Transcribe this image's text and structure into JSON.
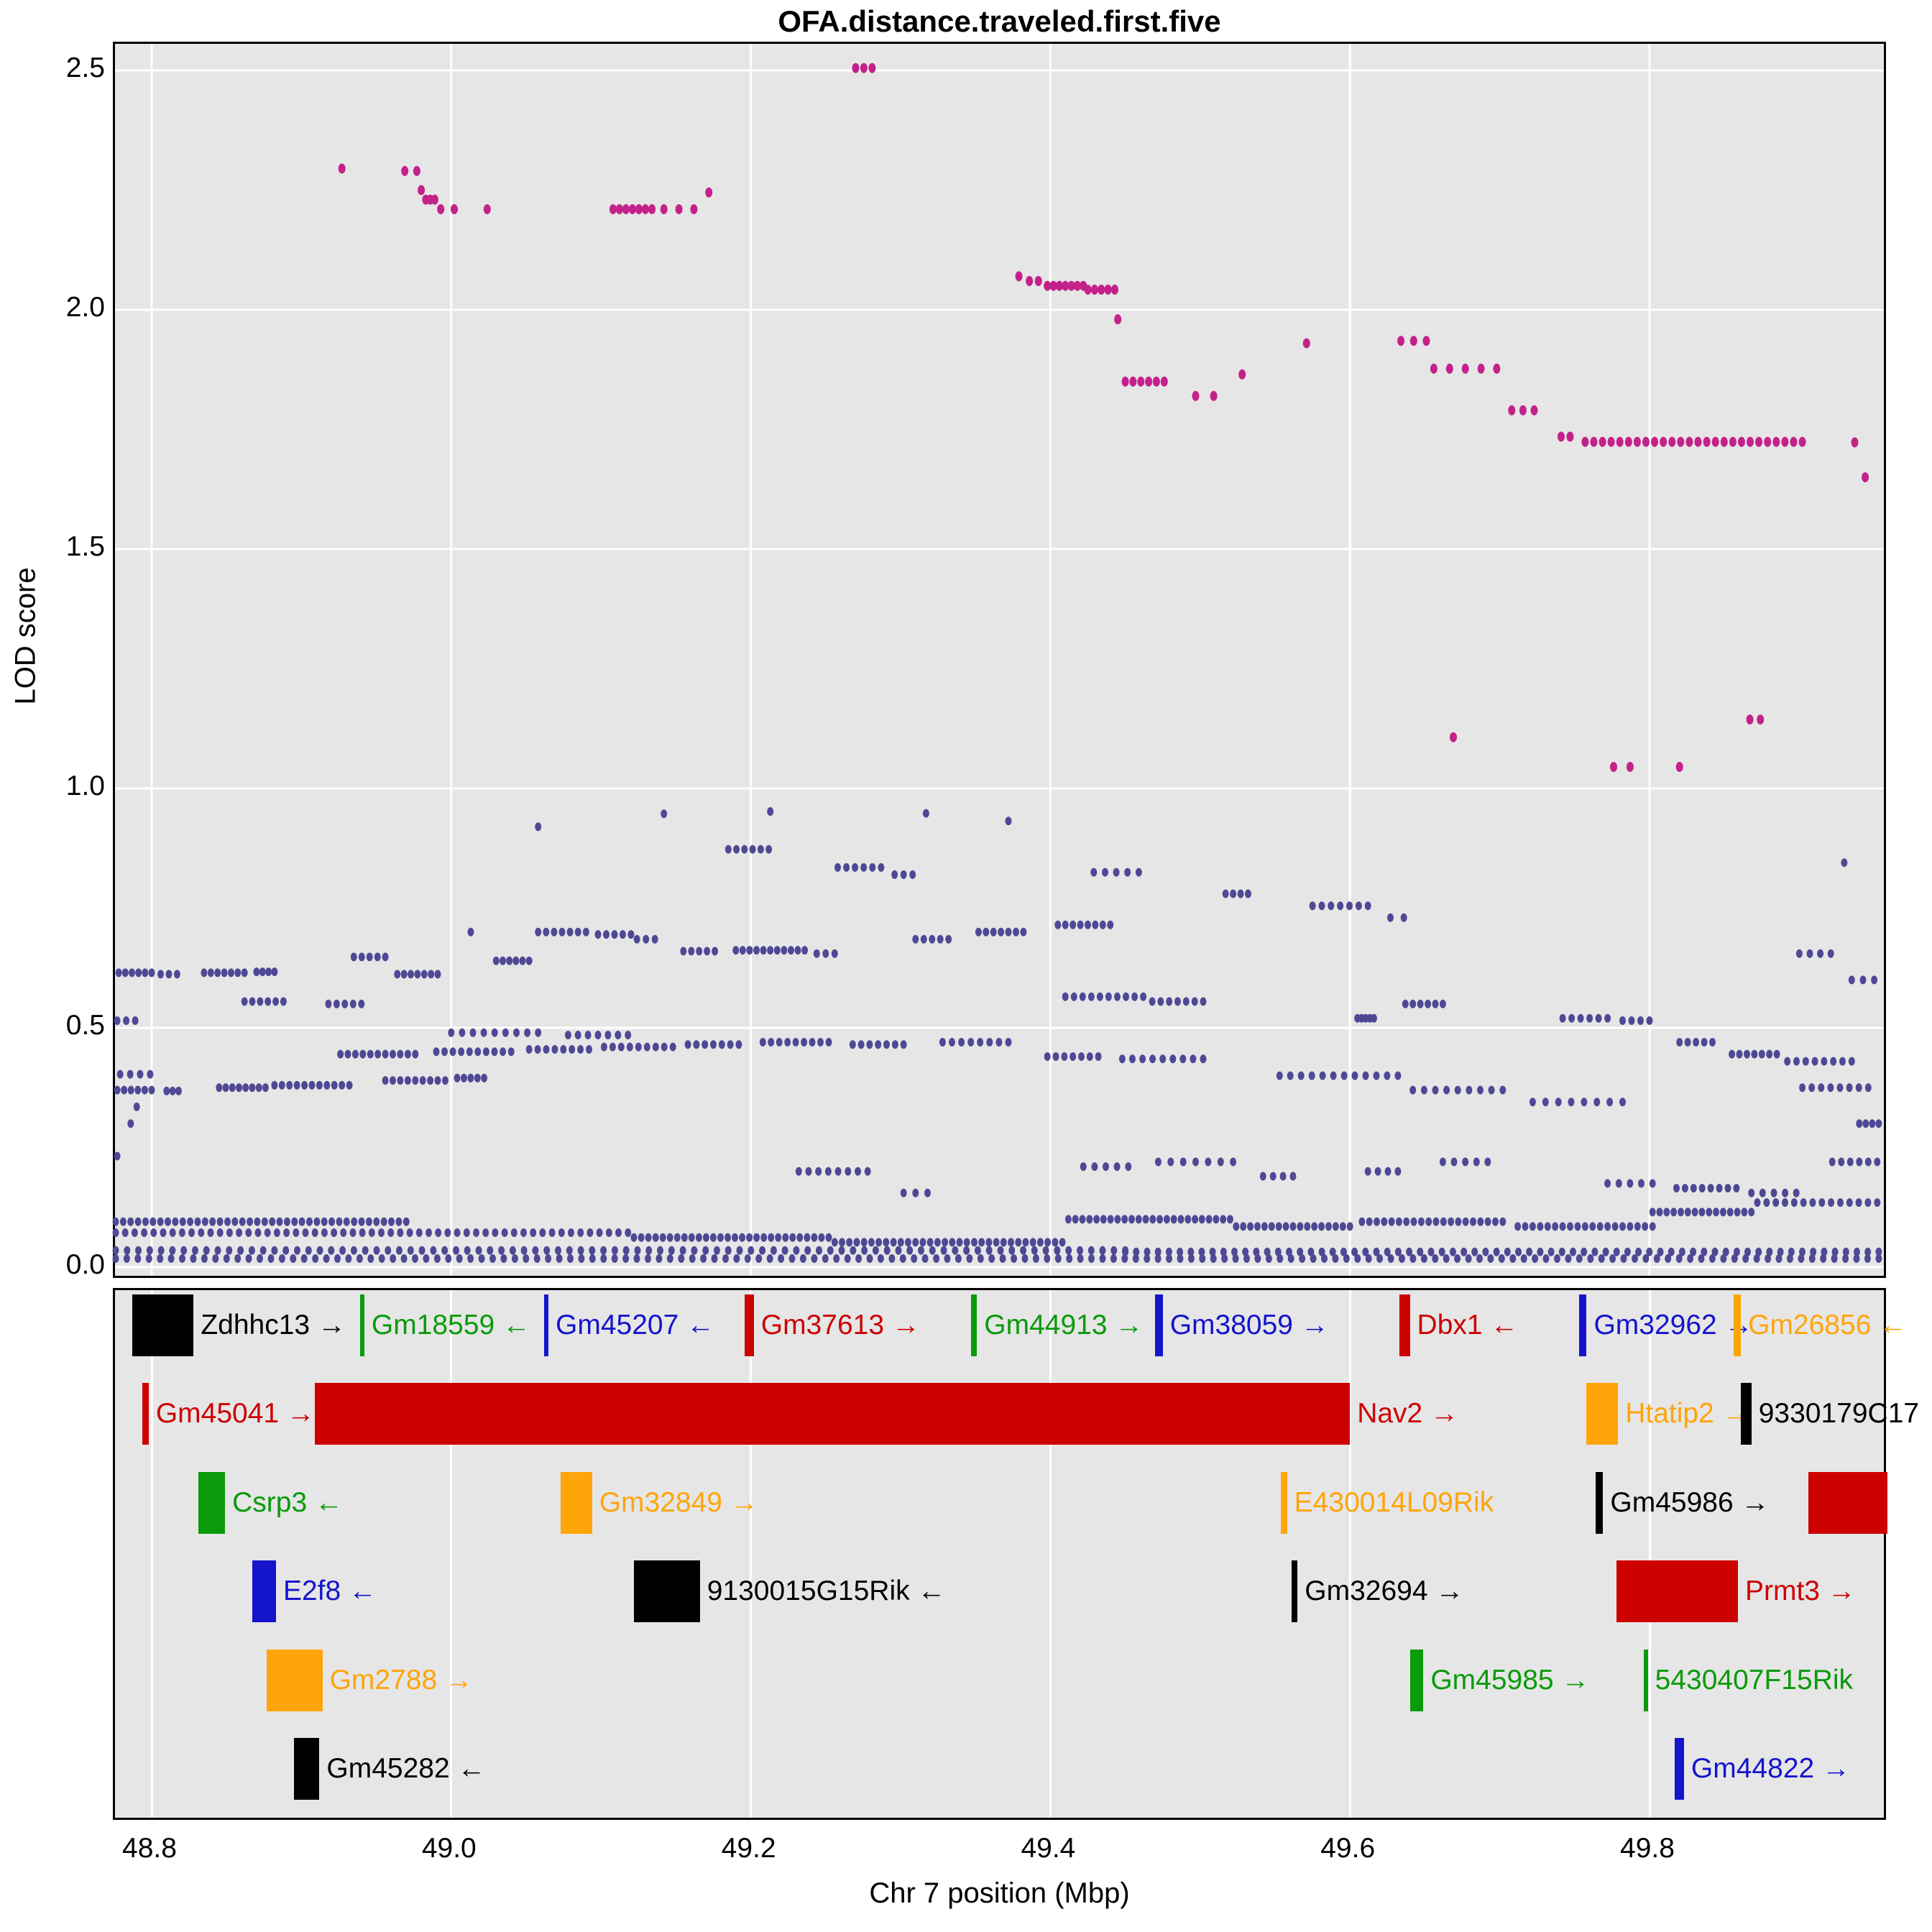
{
  "title": "OFA.distance.traveled.first.five",
  "axes": {
    "y_label": "LOD score",
    "x_label": "Chr 7 position (Mbp)",
    "y_ticks": [
      2.5,
      2.0,
      1.5,
      1.0,
      0.5,
      0.0
    ],
    "x_ticks": [
      48.8,
      49.0,
      49.2,
      49.4,
      49.6,
      49.8
    ]
  },
  "colors": {
    "panel_bg": "#E6E6E6",
    "grid": "#FFFFFF",
    "high_series": "#C4218A",
    "low_series": "#4F4895",
    "gene_black": "#000000",
    "gene_green": "#0A9A0A",
    "gene_blue": "#1414CC",
    "gene_red": "#CD0000",
    "gene_orange": "#FFA50A"
  },
  "chart_data": {
    "type": "scatter",
    "title": "OFA.distance.traveled.first.five",
    "xlabel": "Chr 7 position (Mbp)",
    "ylabel": "LOD score",
    "xlim": [
      48.776,
      49.953
    ],
    "ylim": [
      0.0,
      2.55
    ],
    "x_ticks": [
      48.8,
      49.0,
      49.2,
      49.4,
      49.6,
      49.8
    ],
    "y_ticks": [
      0.0,
      0.5,
      1.0,
      1.5,
      2.0,
      2.5
    ],
    "grid": true,
    "legend": false,
    "series_format": "runs are [x_start_Mbp, x_end_Mbp, LOD, n_points]; n points evenly spaced from start to end",
    "series": [
      {
        "name": "high-LOD-markers",
        "color": "#C4218A",
        "runs": [
          [
            48.927,
            48.927,
            2.295,
            1
          ],
          [
            48.969,
            48.977,
            2.29,
            2
          ],
          [
            48.98,
            48.98,
            2.25,
            1
          ],
          [
            48.983,
            48.989,
            2.23,
            3
          ],
          [
            48.993,
            49.002,
            2.21,
            2
          ],
          [
            49.024,
            49.024,
            2.21,
            1
          ],
          [
            49.108,
            49.134,
            2.21,
            7
          ],
          [
            49.142,
            49.162,
            2.21,
            3
          ],
          [
            49.172,
            49.172,
            2.245,
            1
          ],
          [
            49.27,
            49.281,
            2.505,
            3
          ],
          [
            49.379,
            49.379,
            2.07,
            1
          ],
          [
            49.386,
            49.392,
            2.06,
            2
          ],
          [
            49.398,
            49.422,
            2.05,
            7
          ],
          [
            49.425,
            49.443,
            2.042,
            5
          ],
          [
            49.445,
            49.445,
            1.98,
            1
          ],
          [
            49.45,
            49.476,
            1.85,
            6
          ],
          [
            49.497,
            49.509,
            1.82,
            2
          ],
          [
            49.528,
            49.528,
            1.865,
            1
          ],
          [
            49.571,
            49.571,
            1.93,
            1
          ],
          [
            49.634,
            49.651,
            1.935,
            3
          ],
          [
            49.656,
            49.698,
            1.877,
            5
          ],
          [
            49.708,
            49.723,
            1.79,
            3
          ],
          [
            49.741,
            49.747,
            1.735,
            2
          ],
          [
            49.757,
            49.902,
            1.724,
            26
          ],
          [
            49.937,
            49.937,
            1.723,
            1
          ],
          [
            49.944,
            49.944,
            1.65,
            1
          ],
          [
            49.669,
            49.669,
            1.107,
            1
          ],
          [
            49.776,
            49.787,
            1.045,
            2
          ],
          [
            49.82,
            49.82,
            1.045,
            1
          ],
          [
            49.867,
            49.874,
            1.144,
            2
          ]
        ]
      },
      {
        "name": "low-LOD-markers",
        "color": "#4F4895",
        "runs": [
          [
            49.142,
            49.142,
            0.947,
            1
          ],
          [
            49.213,
            49.213,
            0.952,
            1
          ],
          [
            49.317,
            49.317,
            0.948,
            1
          ],
          [
            49.372,
            49.372,
            0.932,
            1
          ],
          [
            49.058,
            49.058,
            0.92,
            1
          ],
          [
            49.185,
            49.212,
            0.873,
            6
          ],
          [
            49.258,
            49.287,
            0.835,
            6
          ],
          [
            49.296,
            49.308,
            0.82,
            3
          ],
          [
            49.429,
            49.459,
            0.825,
            5
          ],
          [
            49.517,
            49.532,
            0.78,
            4
          ],
          [
            49.575,
            49.612,
            0.755,
            7
          ],
          [
            49.627,
            49.636,
            0.73,
            2
          ],
          [
            49.93,
            49.93,
            0.845,
            1
          ],
          [
            48.778,
            48.8,
            0.615,
            6
          ],
          [
            48.806,
            48.817,
            0.612,
            3
          ],
          [
            48.835,
            48.862,
            0.615,
            7
          ],
          [
            48.87,
            48.882,
            0.617,
            4
          ],
          [
            48.935,
            48.956,
            0.648,
            5
          ],
          [
            48.964,
            48.991,
            0.612,
            7
          ],
          [
            49.013,
            49.013,
            0.7,
            1
          ],
          [
            49.058,
            49.09,
            0.7,
            7
          ],
          [
            49.098,
            49.12,
            0.695,
            5
          ],
          [
            49.124,
            49.136,
            0.685,
            3
          ],
          [
            49.03,
            49.052,
            0.64,
            6
          ],
          [
            49.155,
            49.176,
            0.66,
            5
          ],
          [
            49.19,
            49.236,
            0.662,
            11
          ],
          [
            49.244,
            49.256,
            0.655,
            3
          ],
          [
            49.31,
            49.332,
            0.685,
            5
          ],
          [
            49.352,
            49.382,
            0.7,
            7
          ],
          [
            49.405,
            49.44,
            0.715,
            8
          ],
          [
            49.9,
            49.921,
            0.655,
            4
          ],
          [
            49.935,
            49.95,
            0.6,
            3
          ],
          [
            48.777,
            48.789,
            0.515,
            3
          ],
          [
            48.862,
            48.888,
            0.555,
            6
          ],
          [
            48.918,
            48.94,
            0.55,
            5
          ],
          [
            49.0,
            49.058,
            0.49,
            9
          ],
          [
            49.078,
            49.118,
            0.485,
            7
          ],
          [
            49.41,
            49.462,
            0.565,
            10
          ],
          [
            49.468,
            49.502,
            0.555,
            7
          ],
          [
            49.605,
            49.616,
            0.52,
            5
          ],
          [
            49.637,
            49.662,
            0.55,
            6
          ],
          [
            49.742,
            49.772,
            0.52,
            6
          ],
          [
            49.782,
            49.8,
            0.515,
            4
          ],
          [
            48.926,
            48.976,
            0.445,
            11
          ],
          [
            48.99,
            49.04,
            0.45,
            10
          ],
          [
            49.052,
            49.092,
            0.455,
            8
          ],
          [
            49.102,
            49.148,
            0.46,
            9
          ],
          [
            49.158,
            49.192,
            0.465,
            7
          ],
          [
            49.208,
            49.252,
            0.47,
            9
          ],
          [
            49.268,
            49.302,
            0.465,
            7
          ],
          [
            49.328,
            49.372,
            0.47,
            8
          ],
          [
            49.398,
            49.432,
            0.44,
            7
          ],
          [
            49.448,
            49.502,
            0.435,
            9
          ],
          [
            49.855,
            49.885,
            0.445,
            7
          ],
          [
            49.892,
            49.935,
            0.43,
            8
          ],
          [
            49.82,
            49.842,
            0.47,
            5
          ],
          [
            48.777,
            48.8,
            0.37,
            6
          ],
          [
            48.81,
            48.818,
            0.368,
            3
          ],
          [
            48.845,
            48.876,
            0.375,
            8
          ],
          [
            48.882,
            48.932,
            0.38,
            11
          ],
          [
            48.956,
            48.996,
            0.39,
            9
          ],
          [
            49.004,
            49.022,
            0.395,
            5
          ],
          [
            48.779,
            48.799,
            0.403,
            4
          ],
          [
            49.553,
            49.632,
            0.4,
            12
          ],
          [
            49.642,
            49.702,
            0.37,
            9
          ],
          [
            49.722,
            49.782,
            0.345,
            8
          ],
          [
            49.902,
            49.946,
            0.375,
            8
          ],
          [
            49.94,
            49.953,
            0.3,
            4
          ],
          [
            48.79,
            48.79,
            0.335,
            1
          ],
          [
            48.786,
            48.786,
            0.3,
            1
          ],
          [
            48.777,
            48.777,
            0.232,
            1
          ],
          [
            49.232,
            49.278,
            0.2,
            8
          ],
          [
            49.302,
            49.318,
            0.155,
            3
          ],
          [
            49.422,
            49.452,
            0.21,
            5
          ],
          [
            49.472,
            49.522,
            0.22,
            7
          ],
          [
            49.542,
            49.562,
            0.19,
            4
          ],
          [
            49.612,
            49.632,
            0.2,
            4
          ],
          [
            49.662,
            49.692,
            0.22,
            5
          ],
          [
            49.772,
            49.802,
            0.175,
            5
          ],
          [
            49.818,
            49.858,
            0.165,
            8
          ],
          [
            49.868,
            49.898,
            0.155,
            5
          ],
          [
            49.922,
            49.952,
            0.22,
            6
          ],
          [
            49.872,
            49.952,
            0.135,
            14
          ],
          [
            48.776,
            48.97,
            0.095,
            40
          ],
          [
            48.776,
            49.118,
            0.072,
            55
          ],
          [
            49.122,
            49.252,
            0.062,
            28
          ],
          [
            49.256,
            49.408,
            0.052,
            32
          ],
          [
            49.412,
            49.52,
            0.1,
            24
          ],
          [
            49.524,
            49.6,
            0.085,
            17
          ],
          [
            49.608,
            49.702,
            0.095,
            20
          ],
          [
            49.712,
            49.802,
            0.085,
            19
          ],
          [
            49.802,
            49.868,
            0.115,
            15
          ],
          [
            48.776,
            49.45,
            0.035,
            90
          ],
          [
            49.45,
            49.953,
            0.032,
            70
          ],
          [
            48.776,
            49.953,
            0.018,
            160
          ]
        ]
      }
    ]
  },
  "genes": {
    "rows": [
      [
        {
          "label": "Zdhhc13",
          "arrow": "→",
          "color": "gene_black",
          "start": 48.787,
          "end": 48.828
        },
        {
          "label": "Gm18559",
          "arrow": "←",
          "color": "gene_green",
          "start": 48.939,
          "end": 48.942
        },
        {
          "label": "Gm45207",
          "arrow": "←",
          "color": "gene_blue",
          "start": 49.062,
          "end": 49.064
        },
        {
          "label": "Gm37613",
          "arrow": "→",
          "color": "gene_red",
          "start": 49.196,
          "end": 49.202
        },
        {
          "label": "Gm44913",
          "arrow": "→",
          "color": "gene_green",
          "start": 49.347,
          "end": 49.351
        },
        {
          "label": "Gm38059",
          "arrow": "→",
          "color": "gene_blue",
          "start": 49.47,
          "end": 49.475
        },
        {
          "label": "Dbx1",
          "arrow": "←",
          "color": "gene_red",
          "start": 49.633,
          "end": 49.64
        },
        {
          "label": "Gm32962",
          "arrow": "→",
          "color": "gene_blue",
          "start": 49.753,
          "end": 49.758
        },
        {
          "label": "Gm26856",
          "arrow": "←",
          "color": "gene_orange",
          "start": 49.856,
          "end": 49.861
        }
      ],
      [
        {
          "label": "Gm45041",
          "arrow": "→",
          "color": "gene_red",
          "start": 48.794,
          "end": 48.798
        },
        {
          "label": "Nav2",
          "arrow": "→",
          "color": "gene_red",
          "start": 48.909,
          "end": 49.6
        },
        {
          "label": "Htatip2",
          "arrow": "→",
          "color": "gene_orange",
          "start": 49.758,
          "end": 49.779
        },
        {
          "label": "9330179C17",
          "arrow": "",
          "color": "gene_black",
          "start": 49.861,
          "end": 49.868
        }
      ],
      [
        {
          "label": "Csrp3",
          "arrow": "←",
          "color": "gene_green",
          "start": 48.831,
          "end": 48.849
        },
        {
          "label": "Gm32849",
          "arrow": "→",
          "color": "gene_orange",
          "start": 49.073,
          "end": 49.094
        },
        {
          "label": "E430014L09Rik",
          "arrow": "",
          "color": "gene_orange",
          "start": 49.554,
          "end": 49.558
        },
        {
          "label": "Gm45986",
          "arrow": "→",
          "color": "gene_black",
          "start": 49.764,
          "end": 49.769
        },
        {
          "label": "",
          "arrow": "",
          "color": "gene_red",
          "start": 49.906,
          "end": 49.959
        }
      ],
      [
        {
          "label": "E2f8",
          "arrow": "←",
          "color": "gene_blue",
          "start": 48.867,
          "end": 48.883
        },
        {
          "label": "9130015G15Rik",
          "arrow": "←",
          "color": "gene_black",
          "start": 49.122,
          "end": 49.166
        },
        {
          "label": "Gm32694",
          "arrow": "→",
          "color": "gene_black",
          "start": 49.561,
          "end": 49.565
        },
        {
          "label": "Prmt3",
          "arrow": "→",
          "color": "gene_red",
          "start": 49.778,
          "end": 49.859
        }
      ],
      [
        {
          "label": "Gm2788",
          "arrow": "→",
          "color": "gene_orange",
          "start": 48.877,
          "end": 48.914
        },
        {
          "label": "Gm45985",
          "arrow": "→",
          "color": "gene_green",
          "start": 49.64,
          "end": 49.649
        },
        {
          "label": "5430407F15Rik",
          "arrow": "",
          "color": "gene_green",
          "start": 49.796,
          "end": 49.798
        }
      ],
      [
        {
          "label": "Gm45282",
          "arrow": "←",
          "color": "gene_black",
          "start": 48.895,
          "end": 48.912
        },
        {
          "label": "Gm44822",
          "arrow": "→",
          "color": "gene_blue",
          "start": 49.817,
          "end": 49.823
        }
      ]
    ]
  }
}
